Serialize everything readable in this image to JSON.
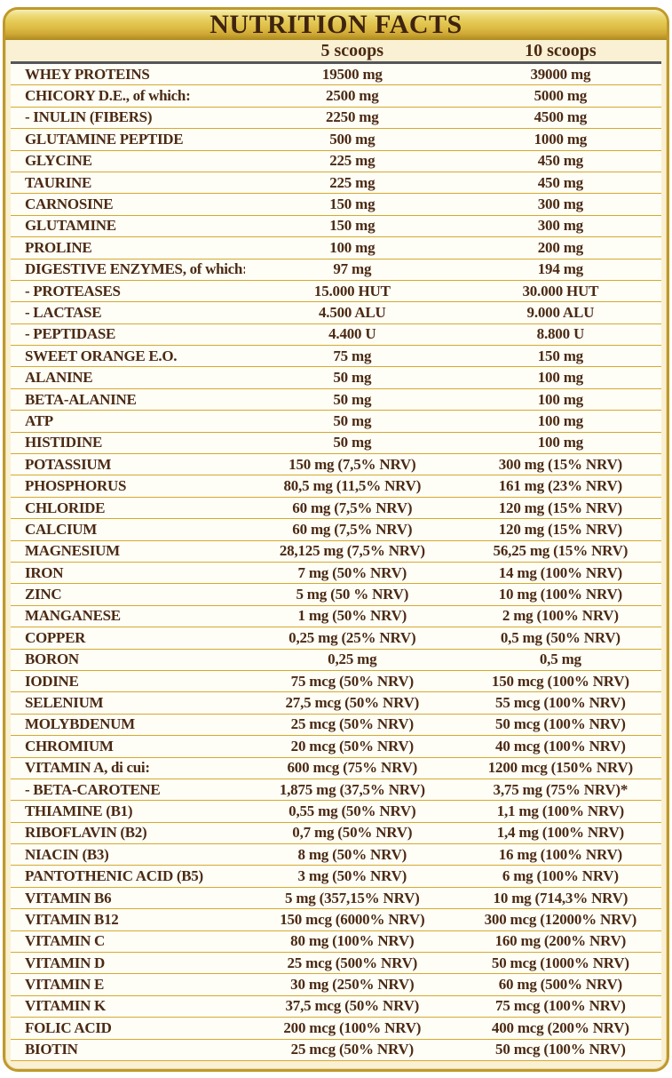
{
  "title": "NUTRITION FACTS",
  "columns": {
    "col5": "5 scoops",
    "col10": "10 scoops"
  },
  "colors": {
    "band_gold_top": "#f6eeb9",
    "band_gold_mid": "#e4c955",
    "band_gold_bottom": "#ab8a1e",
    "frame_border_gold": "#bf992a",
    "row_separator_gold": "#d6a92e",
    "header_separator_gray": "#55565a",
    "body_cream": "#faf0d3",
    "row_background": "#fffef6",
    "text_brown": "#4b2a14"
  },
  "table": {
    "rows": [
      {
        "name": "WHEY PROTEINS",
        "v5": "19500 mg",
        "v10": "39000 mg"
      },
      {
        "name": "CHICORY D.E., of which:",
        "v5": "2500 mg",
        "v10": "5000 mg"
      },
      {
        "name": "- INULIN (FIBERS)",
        "v5": "2250 mg",
        "v10": "4500 mg"
      },
      {
        "name": "GLUTAMINE PEPTIDE",
        "v5": "500 mg",
        "v10": "1000 mg"
      },
      {
        "name": "GLYCINE",
        "v5": "225 mg",
        "v10": "450 mg"
      },
      {
        "name": "TAURINE",
        "v5": "225 mg",
        "v10": "450 mg"
      },
      {
        "name": "CARNOSINE",
        "v5": "150 mg",
        "v10": "300 mg"
      },
      {
        "name": "GLUTAMINE",
        "v5": "150 mg",
        "v10": "300 mg"
      },
      {
        "name": "PROLINE",
        "v5": "100 mg",
        "v10": "200 mg"
      },
      {
        "name": "DIGESTIVE ENZYMES, of which:",
        "v5": "97 mg",
        "v10": "194 mg"
      },
      {
        "name": "- PROTEASES",
        "v5": "15.000 HUT",
        "v10": "30.000 HUT"
      },
      {
        "name": "- LACTASE",
        "v5": "4.500 ALU",
        "v10": "9.000 ALU"
      },
      {
        "name": "- PEPTIDASE",
        "v5": "4.400 U",
        "v10": "8.800 U"
      },
      {
        "name": "SWEET ORANGE E.O.",
        "v5": "75 mg",
        "v10": "150 mg"
      },
      {
        "name": "ALANINE",
        "v5": "50 mg",
        "v10": "100 mg"
      },
      {
        "name": "BETA-ALANINE",
        "v5": "50 mg",
        "v10": "100 mg"
      },
      {
        "name": "ATP",
        "v5": "50 mg",
        "v10": "100 mg"
      },
      {
        "name": "HISTIDINE",
        "v5": "50 mg",
        "v10": "100 mg"
      },
      {
        "name": "POTASSIUM",
        "v5": "150 mg (7,5% NRV)",
        "v10": "300 mg (15% NRV)"
      },
      {
        "name": "PHOSPHORUS",
        "v5": "80,5 mg (11,5% NRV)",
        "v10": "161 mg (23% NRV)"
      },
      {
        "name": "CHLORIDE",
        "v5": "60 mg (7,5% NRV)",
        "v10": "120 mg (15% NRV)"
      },
      {
        "name": "CALCIUM",
        "v5": "60 mg (7,5% NRV)",
        "v10": "120 mg (15% NRV)"
      },
      {
        "name": "MAGNESIUM",
        "v5": "28,125 mg (7,5% NRV)",
        "v10": "56,25 mg (15% NRV)"
      },
      {
        "name": "IRON",
        "v5": "7 mg (50% NRV)",
        "v10": "14 mg (100% NRV)"
      },
      {
        "name": "ZINC",
        "v5": "5 mg (50 % NRV)",
        "v10": "10 mg (100% NRV)"
      },
      {
        "name": "MANGANESE",
        "v5": "1 mg (50% NRV)",
        "v10": "2 mg (100% NRV)"
      },
      {
        "name": "COPPER",
        "v5": "0,25 mg (25% NRV)",
        "v10": "0,5 mg (50% NRV)"
      },
      {
        "name": "BORON",
        "v5": "0,25 mg",
        "v10": "0,5 mg"
      },
      {
        "name": "IODINE",
        "v5": "75 mcg (50% NRV)",
        "v10": "150 mcg (100% NRV)"
      },
      {
        "name": "SELENIUM",
        "v5": "27,5 mcg (50% NRV)",
        "v10": "55 mcg (100% NRV)"
      },
      {
        "name": "MOLYBDENUM",
        "v5": "25 mcg (50% NRV)",
        "v10": "50 mcg (100% NRV)"
      },
      {
        "name": "CHROMIUM",
        "v5": "20 mcg (50% NRV)",
        "v10": "40 mcg (100% NRV)"
      },
      {
        "name": "VITAMIN A, di cui:",
        "v5": "600 mcg (75% NRV)",
        "v10": "1200 mcg (150% NRV)"
      },
      {
        "name": "- BETA-CAROTENE",
        "v5": "1,875 mg (37,5% NRV)",
        "v10": "3,75 mg (75% NRV)*"
      },
      {
        "name": "THIAMINE (B1)",
        "v5": "0,55 mg (50% NRV)",
        "v10": "1,1 mg (100% NRV)"
      },
      {
        "name": "RIBOFLAVIN (B2)",
        "v5": "0,7 mg (50% NRV)",
        "v10": "1,4 mg (100% NRV)"
      },
      {
        "name": "NIACIN (B3)",
        "v5": "8 mg (50% NRV)",
        "v10": "16 mg (100% NRV)"
      },
      {
        "name": "PANTOTHENIC ACID (B5)",
        "v5": "3 mg (50% NRV)",
        "v10": "6 mg (100% NRV)"
      },
      {
        "name": "VITAMIN B6",
        "v5": "5 mg (357,15% NRV)",
        "v10": "10 mg (714,3% NRV)"
      },
      {
        "name": "VITAMIN B12",
        "v5": "150 mcg (6000% NRV)",
        "v10": "300 mcg (12000% NRV)"
      },
      {
        "name": "VITAMIN C",
        "v5": "80 mg (100% NRV)",
        "v10": "160 mg (200% NRV)"
      },
      {
        "name": "VITAMIN D",
        "v5": "25 mcg (500% NRV)",
        "v10": "50 mcg (1000% NRV)"
      },
      {
        "name": "VITAMIN E",
        "v5": "30 mg (250% NRV)",
        "v10": "60 mg (500% NRV)"
      },
      {
        "name": "VITAMIN K",
        "v5": "37,5 mcg (50% NRV)",
        "v10": "75 mcg (100% NRV)"
      },
      {
        "name": "FOLIC ACID",
        "v5": "200 mcg (100% NRV)",
        "v10": "400 mcg (200% NRV)"
      },
      {
        "name": "BIOTIN",
        "v5": "25 mcg (50% NRV)",
        "v10": "50 mcg (100% NRV)"
      }
    ]
  }
}
